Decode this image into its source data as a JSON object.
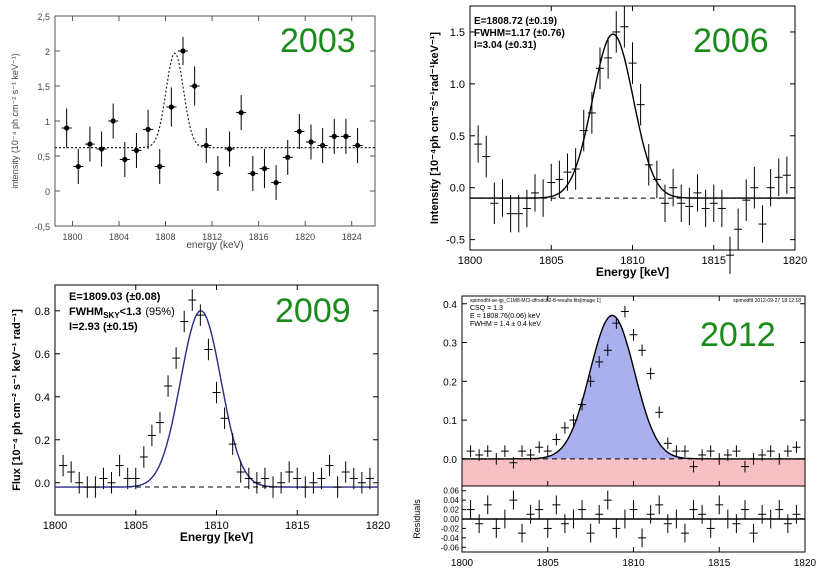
{
  "chart_data": [
    {
      "type": "scatter",
      "title": "2003",
      "xlabel": "energy (keV)",
      "ylabel": "intensity (10⁻⁴ ph cm⁻² s⁻¹ keV⁻¹)",
      "xlim": [
        1798.5,
        1826
      ],
      "ylim": [
        -0.5,
        2.5
      ],
      "xticks": [
        1800,
        1804,
        1808,
        1812,
        1816,
        1820,
        1824
      ],
      "yticks": [
        -0.5,
        0,
        0.5,
        1,
        1.5,
        2,
        2.5
      ],
      "ytick_labels": [
        "-0,5",
        "0",
        "0,5",
        "1",
        "1,5",
        "2",
        "2,5"
      ],
      "series": [
        {
          "x": [
            1799.5,
            1800.5,
            1801.5,
            1802.5,
            1803.5,
            1804.5,
            1805.5,
            1806.5,
            1807.5,
            1808.5,
            1809.5,
            1810.5,
            1811.5,
            1812.5,
            1813.5,
            1814.5,
            1815.5,
            1816.5,
            1817.5,
            1818.5,
            1819.5,
            1820.5,
            1821.5,
            1822.5,
            1823.5,
            1824.5
          ],
          "y": [
            0.9,
            0.35,
            0.67,
            0.6,
            1.0,
            0.45,
            0.58,
            0.88,
            0.35,
            1.2,
            2.0,
            1.5,
            0.65,
            0.25,
            0.6,
            1.12,
            0.25,
            0.32,
            0.12,
            0.48,
            0.85,
            0.7,
            0.65,
            0.78,
            0.78,
            0.65
          ],
          "err": [
            0.28,
            0.25,
            0.25,
            0.25,
            0.25,
            0.25,
            0.25,
            0.28,
            0.25,
            0.28,
            0.2,
            0.28,
            0.25,
            0.25,
            0.25,
            0.25,
            0.25,
            0.28,
            0.25,
            0.25,
            0.25,
            0.25,
            0.25,
            0.25,
            0.25,
            0.25
          ]
        }
      ],
      "model": {
        "baseline": 0.62,
        "peak": 1.35,
        "center": 1808.8,
        "sigma": 0.75
      }
    },
    {
      "type": "scatter",
      "title": "2006",
      "annotations": [
        "E=1808.72 (±0.19)",
        "FWHM=1.17 (±0.76)",
        "I=3.04 (±0.31)"
      ],
      "xlabel": "Energy [keV]",
      "ylabel": "Intensity [10⁻⁴ph cm⁻²s⁻¹rad⁻¹keV⁻¹]",
      "xlim": [
        1800,
        1820
      ],
      "ylim": [
        -0.6,
        1.75
      ],
      "xticks": [
        1800,
        1805,
        1810,
        1815,
        1820
      ],
      "yticks": [
        -0.5,
        0.0,
        0.5,
        1.0,
        1.5
      ],
      "ytick_labels": [
        "-0.5",
        "0.0",
        "0.5",
        "1.0",
        "1.5"
      ],
      "series": [
        {
          "x": [
            1800.5,
            1801,
            1801.5,
            1802,
            1802.5,
            1803,
            1803.5,
            1804,
            1804.5,
            1805,
            1805.5,
            1806,
            1806.5,
            1807,
            1807.5,
            1808,
            1808.5,
            1809,
            1809.5,
            1810,
            1810.5,
            1811,
            1811.5,
            1812,
            1812.5,
            1813,
            1813.5,
            1814,
            1814.5,
            1815,
            1815.5,
            1816,
            1816.5,
            1817,
            1817.5,
            1818,
            1818.5,
            1819,
            1819.5
          ],
          "y": [
            0.42,
            0.3,
            -0.15,
            -0.1,
            -0.25,
            -0.25,
            -0.2,
            -0.05,
            -0.1,
            0.05,
            0.08,
            0.15,
            0.18,
            0.55,
            0.72,
            1.15,
            1.25,
            1.5,
            1.55,
            1.2,
            0.8,
            0.22,
            0.08,
            -0.15,
            0.0,
            -0.15,
            -0.18,
            -0.05,
            -0.2,
            -0.15,
            -0.2,
            -0.65,
            -0.4,
            -0.12,
            0.0,
            -0.35,
            0.0,
            0.1,
            0.12
          ],
          "err": [
            0.18,
            0.2,
            0.2,
            0.18,
            0.18,
            0.18,
            0.18,
            0.18,
            0.18,
            0.18,
            0.18,
            0.18,
            0.2,
            0.2,
            0.2,
            0.2,
            0.2,
            0.2,
            0.2,
            0.2,
            0.2,
            0.2,
            0.18,
            0.18,
            0.18,
            0.18,
            0.18,
            0.18,
            0.18,
            0.18,
            0.18,
            0.18,
            0.2,
            0.2,
            0.2,
            0.18,
            0.18,
            0.18,
            0.18
          ]
        }
      ],
      "model": {
        "baseline": -0.1,
        "peak": 1.58,
        "center": 1808.8,
        "sigma": 1.25
      },
      "zero_line": -0.1
    },
    {
      "type": "scatter",
      "title": "2009",
      "annotations": [
        "E=1809.03 (±0.08)",
        "FWHM",
        "SKY",
        "<1.3",
        "(95%)",
        "I=2.93 (±0.15)"
      ],
      "xlabel": "Energy [keV]",
      "ylabel": "Flux [10⁻⁴ ph cm⁻² s⁻¹ keV⁻¹ rad⁻¹]",
      "xlim": [
        1800,
        1820
      ],
      "ylim": [
        -0.15,
        0.92
      ],
      "xticks": [
        1800,
        1805,
        1810,
        1815,
        1820
      ],
      "yticks": [
        0.0,
        0.2,
        0.4,
        0.6,
        0.8
      ],
      "ytick_labels": [
        "0.0",
        "0.2",
        "0.4",
        "0.6",
        "0.8"
      ],
      "series": [
        {
          "x": [
            1800.5,
            1801,
            1801.5,
            1802,
            1802.5,
            1803,
            1803.5,
            1804,
            1804.5,
            1805,
            1805.5,
            1806,
            1806.5,
            1807,
            1807.5,
            1808,
            1808.5,
            1809,
            1809.5,
            1810,
            1810.5,
            1811,
            1811.5,
            1812,
            1812.5,
            1813,
            1813.5,
            1814,
            1814.5,
            1815,
            1815.5,
            1816,
            1816.5,
            1817,
            1817.5,
            1818,
            1818.5,
            1819,
            1819.5
          ],
          "y": [
            0.08,
            0.05,
            0.0,
            -0.02,
            -0.02,
            0.02,
            0.0,
            0.08,
            0.02,
            0.02,
            0.12,
            0.22,
            0.28,
            0.45,
            0.58,
            0.75,
            0.85,
            0.78,
            0.62,
            0.42,
            0.3,
            0.18,
            0.05,
            0.02,
            0.0,
            0.02,
            -0.02,
            0.0,
            0.05,
            0.02,
            -0.02,
            0.0,
            0.02,
            0.08,
            -0.02,
            0.05,
            0.02,
            0.0,
            0.02
          ],
          "err": [
            0.05,
            0.05,
            0.05,
            0.05,
            0.05,
            0.05,
            0.05,
            0.05,
            0.05,
            0.05,
            0.05,
            0.05,
            0.05,
            0.05,
            0.05,
            0.05,
            0.05,
            0.05,
            0.05,
            0.05,
            0.05,
            0.05,
            0.05,
            0.05,
            0.05,
            0.05,
            0.05,
            0.05,
            0.05,
            0.05,
            0.05,
            0.05,
            0.05,
            0.05,
            0.05,
            0.05,
            0.05,
            0.05,
            0.05
          ]
        }
      ],
      "model": {
        "baseline": -0.02,
        "peak": 0.82,
        "center": 1809.03,
        "sigma": 1.25
      },
      "zero_line": -0.02
    },
    {
      "type": "scatter",
      "title": "2012",
      "header_left": "spimodfit-se-igi_C1M8-MCI-dfrsdcb2-8-results.fits[image 1]",
      "header_right": "spimodfit 2012-09-27 18:12:18",
      "annotations": [
        "CSQ = 1.3",
        "E = 1808.76(0.06) keV",
        "FWHM = 1.4 ± 0.4 keV"
      ],
      "xlabel": "",
      "ylabel": "",
      "residuals_label": "Residuals",
      "xlim": [
        1800,
        1820
      ],
      "ylim": [
        -0.07,
        0.42
      ],
      "xticks": [
        1800,
        1805,
        1810,
        1815,
        1820
      ],
      "yticks": [
        0.0,
        0.1,
        0.2,
        0.3,
        0.4
      ],
      "ytick_labels": [
        "0.0",
        "0.1",
        "0.2",
        "0.3",
        "0.4"
      ],
      "residual_yticks": [
        "0.06",
        "0.04",
        "0.02",
        "0.00",
        "-0.02",
        "-0.04",
        "-0.06"
      ],
      "series": [
        {
          "x": [
            1800.5,
            1801,
            1801.5,
            1802,
            1802.5,
            1803,
            1803.5,
            1804,
            1804.5,
            1805,
            1805.5,
            1806,
            1806.5,
            1807,
            1807.5,
            1808,
            1808.5,
            1809,
            1809.5,
            1810,
            1810.5,
            1811,
            1811.5,
            1812,
            1812.5,
            1813,
            1813.5,
            1814,
            1814.5,
            1815,
            1815.5,
            1816,
            1816.5,
            1817,
            1817.5,
            1818,
            1818.5,
            1819,
            1819.5
          ],
          "y": [
            0.02,
            0.01,
            0.02,
            0.0,
            0.02,
            -0.01,
            0.02,
            0.01,
            0.03,
            0.02,
            0.05,
            0.08,
            0.1,
            0.14,
            0.2,
            0.25,
            0.28,
            0.35,
            0.38,
            0.32,
            0.28,
            0.22,
            0.12,
            0.04,
            0.02,
            0.02,
            -0.02,
            0.01,
            0.02,
            0.0,
            0.01,
            0.02,
            -0.02,
            0.0,
            0.01,
            0.02,
            0.0,
            0.02,
            0.03
          ],
          "err": [
            0.015,
            0.015,
            0.015,
            0.015,
            0.015,
            0.015,
            0.015,
            0.015,
            0.015,
            0.015,
            0.015,
            0.015,
            0.015,
            0.015,
            0.015,
            0.015,
            0.015,
            0.015,
            0.015,
            0.015,
            0.015,
            0.015,
            0.015,
            0.015,
            0.015,
            0.015,
            0.015,
            0.015,
            0.015,
            0.015,
            0.015,
            0.015,
            0.015,
            0.015,
            0.015,
            0.015,
            0.015,
            0.015,
            0.015
          ]
        }
      ],
      "model": {
        "baseline": 0.0,
        "peak": 0.37,
        "center": 1808.76,
        "sigma": 1.3
      },
      "residuals": [
        0.02,
        -0.01,
        0.03,
        -0.02,
        0.0,
        0.04,
        -0.03,
        0.01,
        0.02,
        -0.02,
        0.03,
        -0.01,
        0.0,
        0.02,
        -0.03,
        0.01,
        0.04,
        -0.02,
        0.0,
        0.02,
        -0.04,
        0.01,
        0.03,
        -0.01,
        0.0,
        -0.03,
        0.02,
        0.01,
        -0.02,
        0.03,
        0.0,
        -0.01,
        0.02,
        -0.03,
        0.01,
        0.0,
        0.02,
        -0.01,
        0.01
      ],
      "fill_color": "#aab0ee",
      "band_color": "#f8c0c4"
    }
  ],
  "colors": {
    "year_label": "#1a8a1a",
    "model_line": "#2a2a8a"
  }
}
